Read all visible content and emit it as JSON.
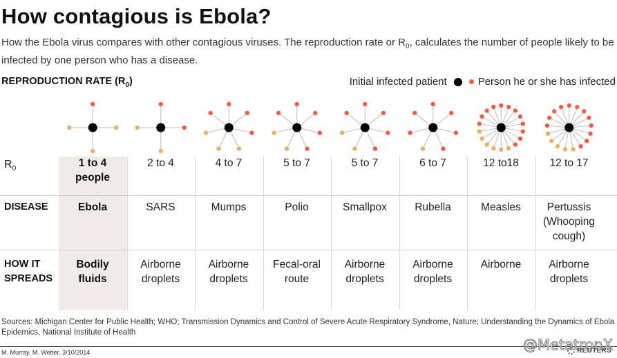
{
  "title": "How contagious is Ebola?",
  "intro": {
    "before": "How the Ebola virus compares with other contagious viruses. The reproduction rate or R",
    "sub": "0",
    "after": ", calculates the number of people likely to be infected by one person who has a disease."
  },
  "reproduction_label": {
    "main": "REPRODUCTION RATE (R",
    "sub": "0",
    "close": ")"
  },
  "legend": {
    "initial": "Initial infected patient",
    "infected": "Person he or she has infected"
  },
  "row_labels": {
    "r0_main": "R",
    "r0_sub": "0",
    "disease": "DISEASE",
    "spread_line1": "HOW IT",
    "spread_line2": "SPREADS"
  },
  "colors": {
    "center": "#000000",
    "infected": "#e8604c",
    "range_extra": "#e6b06d",
    "highlight": "#eeebe8",
    "spoke": "#bbbbbb"
  },
  "chart_data": {
    "type": "table",
    "diseases": [
      {
        "r0": "1 to 4 people",
        "r0_lines": [
          "1 to 4",
          "people"
        ],
        "disease": [
          "Ebola"
        ],
        "spread": [
          "Bodily",
          "fluids"
        ],
        "r0_min": 1,
        "r0_max": 4,
        "highlight": true
      },
      {
        "r0": "2 to 4",
        "r0_lines": [
          "2 to 4"
        ],
        "disease": [
          "SARS"
        ],
        "spread": [
          "Airborne",
          "droplets"
        ],
        "r0_min": 2,
        "r0_max": 4
      },
      {
        "r0": "4 to 7",
        "r0_lines": [
          "4 to 7"
        ],
        "disease": [
          "Mumps"
        ],
        "spread": [
          "Airborne",
          "droplets"
        ],
        "r0_min": 4,
        "r0_max": 7
      },
      {
        "r0": "5 to 7",
        "r0_lines": [
          "5 to 7"
        ],
        "disease": [
          "Polio"
        ],
        "spread": [
          "Fecal-oral",
          "route"
        ],
        "r0_min": 5,
        "r0_max": 7
      },
      {
        "r0": "5 to 7",
        "r0_lines": [
          "5 to 7"
        ],
        "disease": [
          "Smallpox"
        ],
        "spread": [
          "Airborne",
          "droplets"
        ],
        "r0_min": 5,
        "r0_max": 7
      },
      {
        "r0": "6 to 7",
        "r0_lines": [
          "6 to 7"
        ],
        "disease": [
          "Rubella"
        ],
        "spread": [
          "Airborne",
          "droplets"
        ],
        "r0_min": 6,
        "r0_max": 7
      },
      {
        "r0": "12 to18",
        "r0_lines": [
          "12 to18"
        ],
        "disease": [
          "Measles"
        ],
        "spread": [
          "Airborne"
        ],
        "r0_min": 12,
        "r0_max": 18
      },
      {
        "r0": "12 to 17",
        "r0_lines": [
          "12 to 17"
        ],
        "disease": [
          "Pertussis",
          "(Whooping",
          "cough)"
        ],
        "spread": [
          "Airborne",
          "droplets"
        ],
        "r0_min": 12,
        "r0_max": 17
      }
    ]
  },
  "sources": "Sources: Michigan Center for Public Health; WHO; Transmission Dynamics and Control of Severe Acute Respiratory Syndrome, Nature; Understanding the Dynamics of Ebola Epidemics, National Institute of Health",
  "credit": "M. Murray, M. Weber, 3/10/2014",
  "brand": "REUTERS",
  "watermark": "@MetatronX"
}
